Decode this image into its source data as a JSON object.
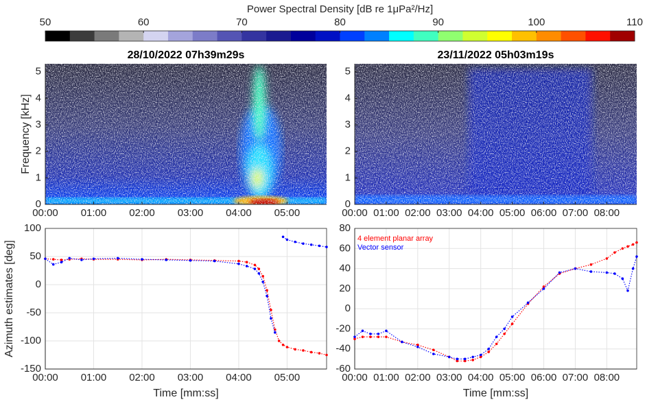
{
  "chart_data": [
    {
      "type": "colorbar",
      "title": "Power Spectral Density [dB re 1μPa²/Hz]",
      "clim": [
        50,
        110
      ],
      "ticks": [
        50,
        60,
        70,
        80,
        90,
        100,
        110
      ],
      "colors": [
        "#000000",
        "#3c3c3c",
        "#7a7a7a",
        "#b4b4b4",
        "#d4d4f0",
        "#a4a4dc",
        "#7c7cc8",
        "#5454b4",
        "#3434a0",
        "#1a1a90",
        "#00009c",
        "#0010c4",
        "#0040ff",
        "#0080ff",
        "#00ffff",
        "#40ffc0",
        "#90ff70",
        "#d0ff30",
        "#ffff00",
        "#ffc000",
        "#ff8c00",
        "#ff5000",
        "#ff1000",
        "#a00000"
      ]
    },
    {
      "type": "spectrogram",
      "title": "28/10/2022 07h39m29s",
      "ylabel": "Frequency [kHz]",
      "xlim": [
        0,
        349
      ],
      "ylim": [
        0,
        5.3
      ],
      "xticks": [
        {
          "value": 0,
          "label": "00:00"
        },
        {
          "value": 60,
          "label": "01:00"
        },
        {
          "value": 120,
          "label": "02:00"
        },
        {
          "value": 180,
          "label": "03:00"
        },
        {
          "value": 240,
          "label": "04:00"
        },
        {
          "value": 300,
          "label": "05:00"
        }
      ],
      "yticks": [
        0,
        1,
        2,
        3,
        4,
        5
      ]
    },
    {
      "type": "spectrogram",
      "title": "23/11/2022 05h03m19s",
      "xlim": [
        0,
        537
      ],
      "ylim": [
        0,
        5.3
      ],
      "xticks": [
        {
          "value": 0,
          "label": "00:00"
        },
        {
          "value": 60,
          "label": "01:00"
        },
        {
          "value": 120,
          "label": "02:00"
        },
        {
          "value": 180,
          "label": "03:00"
        },
        {
          "value": 240,
          "label": "04:00"
        },
        {
          "value": 300,
          "label": "05:00"
        },
        {
          "value": 360,
          "label": "06:00"
        },
        {
          "value": 420,
          "label": "07:00"
        },
        {
          "value": 480,
          "label": "08:00"
        }
      ],
      "yticks": [
        0,
        1,
        2,
        3,
        4,
        5
      ]
    },
    {
      "type": "line",
      "ylabel": "Azimuth estimates [deg]",
      "xlabel": "Time [mm:ss]",
      "grid": true,
      "xlim": [
        0,
        349
      ],
      "ylim": [
        -150,
        100
      ],
      "xticks": [
        {
          "value": 0,
          "label": "00:00"
        },
        {
          "value": 60,
          "label": "01:00"
        },
        {
          "value": 120,
          "label": "02:00"
        },
        {
          "value": 180,
          "label": "03:00"
        },
        {
          "value": 240,
          "label": "04:00"
        },
        {
          "value": 300,
          "label": "05:00"
        }
      ],
      "yticks": [
        -150,
        -100,
        -50,
        0,
        50,
        100
      ],
      "x": [
        0,
        10,
        20,
        30,
        45,
        60,
        90,
        120,
        150,
        180,
        210,
        240,
        250,
        260,
        265,
        270,
        275,
        280,
        285,
        290,
        295,
        300,
        310,
        320,
        330,
        340,
        349
      ],
      "series": [
        {
          "color": "#ff0000",
          "values": [
            46,
            45,
            44,
            45,
            46,
            45,
            45,
            44,
            45,
            44,
            43,
            42,
            40,
            35,
            28,
            15,
            -10,
            -45,
            -80,
            -100,
            -107,
            -111,
            -115,
            -117,
            -120,
            -122,
            -125
          ]
        },
        {
          "color": "#0000ff",
          "values": [
            46,
            36,
            40,
            47,
            44,
            46,
            47,
            45,
            44,
            43,
            42,
            37,
            33,
            28,
            20,
            5,
            -20,
            -60,
            -85,
            null,
            85,
            80,
            76,
            73,
            71,
            69,
            67
          ]
        }
      ]
    },
    {
      "type": "line",
      "xlabel": "Time [mm:ss]",
      "grid": true,
      "legend": "upper left",
      "xlim": [
        0,
        537
      ],
      "ylim": [
        -60,
        80
      ],
      "xticks": [
        {
          "value": 0,
          "label": "00:00"
        },
        {
          "value": 60,
          "label": "01:00"
        },
        {
          "value": 120,
          "label": "02:00"
        },
        {
          "value": 180,
          "label": "03:00"
        },
        {
          "value": 240,
          "label": "04:00"
        },
        {
          "value": 300,
          "label": "05:00"
        },
        {
          "value": 360,
          "label": "06:00"
        },
        {
          "value": 420,
          "label": "07:00"
        },
        {
          "value": 480,
          "label": "08:00"
        }
      ],
      "yticks": [
        -60,
        -40,
        -20,
        0,
        20,
        40,
        60,
        80
      ],
      "x": [
        0,
        15,
        30,
        45,
        60,
        90,
        120,
        150,
        180,
        195,
        210,
        225,
        240,
        255,
        270,
        285,
        300,
        330,
        360,
        390,
        420,
        450,
        480,
        495,
        510,
        520,
        530,
        537
      ],
      "series": [
        {
          "name": "4 element planar array",
          "color": "#ff0000",
          "values": [
            -30,
            -28,
            -28,
            -28,
            -28,
            -33,
            -36,
            -41,
            -48,
            -52,
            -52,
            -51,
            -48,
            -43,
            -35,
            -25,
            -15,
            5,
            22,
            35,
            40,
            44,
            50,
            56,
            60,
            62,
            64,
            66
          ]
        },
        {
          "name": "Vector sensor",
          "color": "#0000ff",
          "values": [
            -28,
            -22,
            -25,
            -25,
            -22,
            -33,
            -38,
            -45,
            -48,
            -50,
            -50,
            -48,
            -46,
            -40,
            -28,
            -20,
            -8,
            6,
            20,
            36,
            40,
            37,
            36,
            35,
            30,
            18,
            40,
            52
          ]
        }
      ]
    }
  ]
}
